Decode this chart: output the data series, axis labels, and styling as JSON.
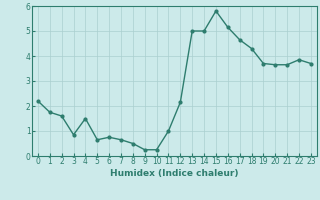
{
  "x": [
    0,
    1,
    2,
    3,
    4,
    5,
    6,
    7,
    8,
    9,
    10,
    11,
    12,
    13,
    14,
    15,
    16,
    17,
    18,
    19,
    20,
    21,
    22,
    23
  ],
  "y": [
    2.2,
    1.75,
    1.6,
    0.85,
    1.5,
    0.65,
    0.75,
    0.65,
    0.5,
    0.25,
    0.25,
    1.0,
    2.15,
    5.0,
    5.0,
    5.8,
    5.15,
    4.65,
    4.3,
    3.7,
    3.65,
    3.65,
    3.85,
    3.7
  ],
  "line_color": "#2e7d6e",
  "bg_color": "#cceaea",
  "grid_color": "#aacfcf",
  "xlabel": "Humidex (Indice chaleur)",
  "xlim": [
    -0.5,
    23.5
  ],
  "ylim": [
    0,
    6
  ],
  "yticks": [
    0,
    1,
    2,
    3,
    4,
    5,
    6
  ],
  "xticks": [
    0,
    1,
    2,
    3,
    4,
    5,
    6,
    7,
    8,
    9,
    10,
    11,
    12,
    13,
    14,
    15,
    16,
    17,
    18,
    19,
    20,
    21,
    22,
    23
  ],
  "tick_color": "#2e7d6e",
  "label_fontsize": 6.5,
  "tick_fontsize": 5.5,
  "marker_size": 2.0,
  "linewidth": 1.0
}
